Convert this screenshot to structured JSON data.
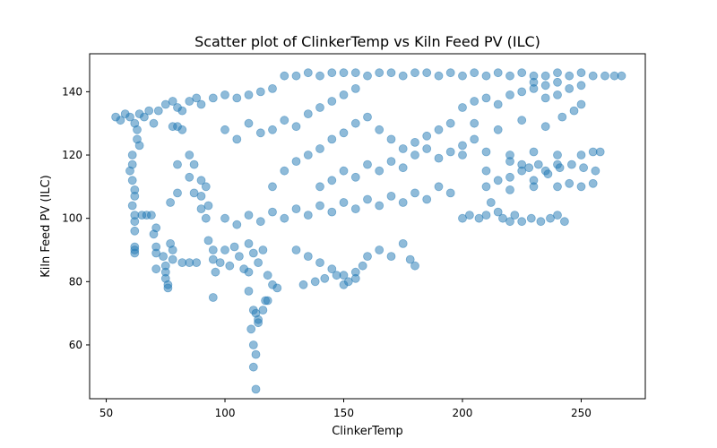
{
  "chart_data": {
    "type": "scatter",
    "title": "Scatter plot of ClinkerTemp vs Kiln Feed PV (ILC)",
    "xlabel": "ClinkerTemp",
    "ylabel": "Kiln Feed PV (ILC)",
    "xlim": [
      43,
      277
    ],
    "ylim": [
      43,
      152
    ],
    "xticks": [
      50,
      100,
      150,
      200,
      250
    ],
    "yticks": [
      60,
      80,
      100,
      120,
      140
    ],
    "grid": false,
    "legend": "none",
    "point_color": "#1f77b4",
    "point_alpha": 0.5,
    "series": [
      {
        "points": [
          [
            54,
            132
          ],
          [
            56,
            131
          ],
          [
            58,
            133
          ],
          [
            60,
            132
          ],
          [
            62,
            130
          ],
          [
            64,
            133
          ],
          [
            66,
            132
          ],
          [
            68,
            134
          ],
          [
            61,
            120
          ],
          [
            61,
            117
          ],
          [
            60,
            115
          ],
          [
            61,
            112
          ],
          [
            62,
            109
          ],
          [
            62,
            107
          ],
          [
            61,
            104
          ],
          [
            62,
            101
          ],
          [
            62,
            99
          ],
          [
            62,
            96
          ],
          [
            62,
            91
          ],
          [
            62,
            90
          ],
          [
            62,
            89
          ],
          [
            63,
            128
          ],
          [
            63,
            125
          ],
          [
            64,
            123
          ],
          [
            65,
            101
          ],
          [
            67,
            101
          ],
          [
            69,
            101
          ],
          [
            70,
            130
          ],
          [
            72,
            134
          ],
          [
            75,
            136
          ],
          [
            78,
            137
          ],
          [
            80,
            135
          ],
          [
            82,
            134
          ],
          [
            85,
            137
          ],
          [
            88,
            138
          ],
          [
            90,
            136
          ],
          [
            95,
            138
          ],
          [
            100,
            139
          ],
          [
            105,
            138
          ],
          [
            110,
            139
          ],
          [
            115,
            140
          ],
          [
            120,
            141
          ],
          [
            71,
            97
          ],
          [
            70,
            95
          ],
          [
            71,
            91
          ],
          [
            71,
            89
          ],
          [
            71,
            84
          ],
          [
            74,
            88
          ],
          [
            75,
            85
          ],
          [
            75,
            83
          ],
          [
            75,
            81
          ],
          [
            76,
            79
          ],
          [
            76,
            78
          ],
          [
            77,
            92
          ],
          [
            78,
            90
          ],
          [
            78,
            87
          ],
          [
            77,
            105
          ],
          [
            78,
            129
          ],
          [
            80,
            129
          ],
          [
            82,
            128
          ],
          [
            80,
            117
          ],
          [
            85,
            120
          ],
          [
            87,
            117
          ],
          [
            85,
            113
          ],
          [
            87,
            108
          ],
          [
            90,
            112
          ],
          [
            92,
            110
          ],
          [
            90,
            107
          ],
          [
            93,
            104
          ],
          [
            80,
            108
          ],
          [
            82,
            86
          ],
          [
            85,
            86
          ],
          [
            88,
            86
          ],
          [
            90,
            103
          ],
          [
            92,
            100
          ],
          [
            93,
            93
          ],
          [
            95,
            90
          ],
          [
            95,
            87
          ],
          [
            95,
            75
          ],
          [
            96,
            83
          ],
          [
            98,
            86
          ],
          [
            100,
            90
          ],
          [
            102,
            85
          ],
          [
            104,
            91
          ],
          [
            106,
            88
          ],
          [
            108,
            84
          ],
          [
            110,
            92
          ],
          [
            110,
            83
          ],
          [
            112,
            89
          ],
          [
            114,
            86
          ],
          [
            116,
            90
          ],
          [
            118,
            82
          ],
          [
            110,
            77
          ],
          [
            112,
            71
          ],
          [
            113,
            70
          ],
          [
            114,
            68
          ],
          [
            114,
            67
          ],
          [
            116,
            71
          ],
          [
            117,
            74
          ],
          [
            118,
            74
          ],
          [
            120,
            79
          ],
          [
            122,
            78
          ],
          [
            112,
            60
          ],
          [
            113,
            57
          ],
          [
            112,
            53
          ],
          [
            113,
            46
          ],
          [
            111,
            65
          ],
          [
            100,
            128
          ],
          [
            105,
            125
          ],
          [
            110,
            130
          ],
          [
            115,
            127
          ],
          [
            120,
            128
          ],
          [
            125,
            131
          ],
          [
            130,
            129
          ],
          [
            135,
            133
          ],
          [
            140,
            135
          ],
          [
            145,
            137
          ],
          [
            150,
            139
          ],
          [
            155,
            141
          ],
          [
            125,
            145
          ],
          [
            130,
            145
          ],
          [
            135,
            146
          ],
          [
            140,
            145
          ],
          [
            145,
            146
          ],
          [
            150,
            146
          ],
          [
            155,
            146
          ],
          [
            160,
            145
          ],
          [
            165,
            146
          ],
          [
            170,
            146
          ],
          [
            175,
            145
          ],
          [
            180,
            146
          ],
          [
            185,
            146
          ],
          [
            190,
            145
          ],
          [
            195,
            146
          ],
          [
            200,
            145
          ],
          [
            205,
            146
          ],
          [
            210,
            145
          ],
          [
            215,
            146
          ],
          [
            220,
            145
          ],
          [
            225,
            146
          ],
          [
            230,
            145
          ],
          [
            235,
            145
          ],
          [
            240,
            146
          ],
          [
            245,
            145
          ],
          [
            250,
            146
          ],
          [
            255,
            145
          ],
          [
            260,
            145
          ],
          [
            264,
            145
          ],
          [
            267,
            145
          ],
          [
            230,
            143
          ],
          [
            235,
            142
          ],
          [
            240,
            143
          ],
          [
            245,
            141
          ],
          [
            250,
            142
          ],
          [
            100,
            100
          ],
          [
            105,
            98
          ],
          [
            110,
            101
          ],
          [
            115,
            99
          ],
          [
            120,
            102
          ],
          [
            125,
            100
          ],
          [
            130,
            103
          ],
          [
            135,
            101
          ],
          [
            140,
            104
          ],
          [
            145,
            102
          ],
          [
            150,
            105
          ],
          [
            155,
            103
          ],
          [
            160,
            106
          ],
          [
            165,
            104
          ],
          [
            170,
            107
          ],
          [
            175,
            105
          ],
          [
            180,
            108
          ],
          [
            185,
            106
          ],
          [
            190,
            110
          ],
          [
            195,
            108
          ],
          [
            120,
            110
          ],
          [
            125,
            115
          ],
          [
            130,
            118
          ],
          [
            135,
            120
          ],
          [
            140,
            122
          ],
          [
            145,
            125
          ],
          [
            150,
            127
          ],
          [
            155,
            130
          ],
          [
            160,
            132
          ],
          [
            165,
            128
          ],
          [
            170,
            125
          ],
          [
            175,
            122
          ],
          [
            180,
            124
          ],
          [
            185,
            126
          ],
          [
            190,
            128
          ],
          [
            195,
            130
          ],
          [
            130,
            90
          ],
          [
            135,
            88
          ],
          [
            140,
            86
          ],
          [
            145,
            84
          ],
          [
            150,
            82
          ],
          [
            152,
            80
          ],
          [
            155,
            83
          ],
          [
            158,
            85
          ],
          [
            160,
            88
          ],
          [
            165,
            90
          ],
          [
            170,
            88
          ],
          [
            175,
            92
          ],
          [
            178,
            87
          ],
          [
            180,
            85
          ],
          [
            133,
            79
          ],
          [
            138,
            80
          ],
          [
            142,
            81
          ],
          [
            147,
            82
          ],
          [
            150,
            79
          ],
          [
            155,
            81
          ],
          [
            140,
            110
          ],
          [
            145,
            112
          ],
          [
            150,
            115
          ],
          [
            155,
            113
          ],
          [
            160,
            117
          ],
          [
            165,
            115
          ],
          [
            170,
            118
          ],
          [
            175,
            116
          ],
          [
            180,
            120
          ],
          [
            185,
            122
          ],
          [
            190,
            119
          ],
          [
            195,
            121
          ],
          [
            200,
            123
          ],
          [
            205,
            125
          ],
          [
            200,
            135
          ],
          [
            205,
            137
          ],
          [
            210,
            138
          ],
          [
            215,
            136
          ],
          [
            220,
            139
          ],
          [
            225,
            140
          ],
          [
            230,
            141
          ],
          [
            235,
            138
          ],
          [
            240,
            139
          ],
          [
            200,
            100
          ],
          [
            203,
            101
          ],
          [
            207,
            100
          ],
          [
            210,
            101
          ],
          [
            210,
            115
          ],
          [
            215,
            112
          ],
          [
            220,
            113
          ],
          [
            225,
            115
          ],
          [
            230,
            112
          ],
          [
            235,
            115
          ],
          [
            240,
            117
          ],
          [
            210,
            110
          ],
          [
            220,
            109
          ],
          [
            230,
            110
          ],
          [
            240,
            110
          ],
          [
            245,
            111
          ],
          [
            250,
            110
          ],
          [
            255,
            111
          ],
          [
            200,
            120
          ],
          [
            210,
            121
          ],
          [
            220,
            120
          ],
          [
            230,
            121
          ],
          [
            240,
            120
          ],
          [
            250,
            120
          ],
          [
            255,
            121
          ],
          [
            258,
            121
          ],
          [
            212,
            105
          ],
          [
            215,
            102
          ],
          [
            217,
            100
          ],
          [
            220,
            99
          ],
          [
            222,
            101
          ],
          [
            225,
            99
          ],
          [
            229,
            100
          ],
          [
            233,
            99
          ],
          [
            237,
            100
          ],
          [
            240,
            101
          ],
          [
            243,
            99
          ],
          [
            220,
            118
          ],
          [
            225,
            117
          ],
          [
            228,
            116
          ],
          [
            232,
            117
          ],
          [
            236,
            114
          ],
          [
            241,
            116
          ],
          [
            246,
            117
          ],
          [
            251,
            116
          ],
          [
            256,
            115
          ],
          [
            205,
            130
          ],
          [
            215,
            128
          ],
          [
            225,
            131
          ],
          [
            235,
            129
          ],
          [
            242,
            132
          ],
          [
            247,
            134
          ],
          [
            250,
            136
          ]
        ]
      }
    ]
  }
}
